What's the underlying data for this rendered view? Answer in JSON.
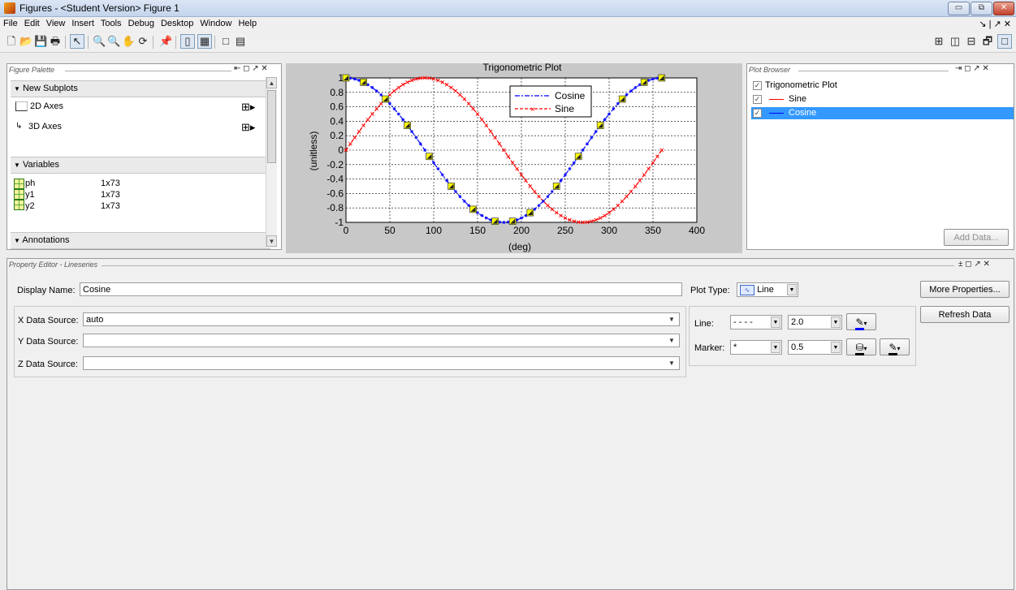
{
  "window": {
    "title": "Figures - <Student Version> Figure 1",
    "controls": {
      "minimize": "▭",
      "restore": "⧉",
      "close": "✕"
    }
  },
  "menu": {
    "items": [
      "File",
      "Edit",
      "View",
      "Insert",
      "Tools",
      "Debug",
      "Desktop",
      "Window",
      "Help"
    ],
    "right": "↘ | ↗ ✕"
  },
  "toolbar": {
    "left": [
      "🗋",
      "📂",
      "💾",
      "🖶",
      "↖",
      "🔍",
      "🔍",
      "✋",
      "⟳",
      "📌",
      "▯",
      "▦",
      "□",
      "▤"
    ],
    "right": [
      "⊞",
      "◫",
      "⊟",
      "🗗",
      "□"
    ]
  },
  "figure_palette": {
    "title": "Figure Palette",
    "controls": "⇤ ◻ ↗ ✕",
    "sections": {
      "subplots": "New Subplots",
      "variables": "Variables",
      "annotations": "Annotations"
    },
    "subplots": [
      {
        "label": "2D Axes",
        "icon": "2d-axes-icon"
      },
      {
        "label": "3D Axes",
        "icon": "3d-axes-icon"
      }
    ],
    "variables": [
      {
        "name": "ph",
        "size": "1x73"
      },
      {
        "name": "y1",
        "size": "1x73"
      },
      {
        "name": "y2",
        "size": "1x73"
      }
    ]
  },
  "plot": {
    "chart_data": {
      "type": "line",
      "title": "Trigonometric Plot",
      "xlabel": "(deg)",
      "ylabel": "(unitless)",
      "xlim": [
        0,
        400
      ],
      "ylim": [
        -1,
        1
      ],
      "xticks": [
        "0",
        "50",
        "100",
        "150",
        "200",
        "250",
        "300",
        "350",
        "400"
      ],
      "yticks": [
        "1",
        "0.8",
        "0.6",
        "0.4",
        "0.2",
        "0",
        "-0.2",
        "-0.4",
        "-0.6",
        "-0.8",
        "-1"
      ],
      "grid": true,
      "legend_position": "top-center",
      "series": [
        {
          "name": "Cosine",
          "function": "cos",
          "color": "#0000ff",
          "linestyle": "dashdot",
          "x": [
            0,
            360
          ],
          "points": 73,
          "square_markers_x": [
            0,
            20,
            45,
            70,
            95,
            120,
            145,
            170,
            190,
            210,
            240,
            265,
            290,
            315,
            340,
            360
          ]
        },
        {
          "name": "Sine",
          "function": "sin",
          "color": "#ff0000",
          "linestyle": "dashed",
          "marker": "x",
          "x": [
            0,
            360
          ],
          "points": 73
        }
      ],
      "square_marker_color": "#ffff00"
    }
  },
  "plot_browser": {
    "title": "Plot Browser",
    "controls": "⇥ ◻ ↗ ✕",
    "items": [
      {
        "label": "Trigonometric Plot",
        "checked": true,
        "selected": false
      },
      {
        "label": "Sine",
        "checked": true,
        "selected": false,
        "color": "#ff0000"
      },
      {
        "label": "Cosine",
        "checked": true,
        "selected": true,
        "color": "#0000ff"
      }
    ],
    "add_data": "Add Data..."
  },
  "property_editor": {
    "title": "Property Editor - Lineseries",
    "controls": "± ◻ ↗ ✕",
    "display_name_label": "Display Name:",
    "display_name": "Cosine",
    "plot_type_label": "Plot Type:",
    "plot_type": "Line",
    "x_source_label": "X Data Source:",
    "x_source": "auto",
    "y_source_label": "Y Data Source:",
    "y_source": "",
    "z_source_label": "Z Data Source:",
    "z_source": "",
    "line_label": "Line:",
    "line_style": "- - - -",
    "line_width": "2.0",
    "marker_label": "Marker:",
    "marker_style": "*",
    "marker_size": "0.5",
    "more_properties": "More Properties...",
    "refresh_data": "Refresh Data"
  },
  "colors": {
    "selection": "#3399ff",
    "plot_bg": "#c8c8c8",
    "cosine": "#0000ff",
    "sine": "#ff0000"
  }
}
